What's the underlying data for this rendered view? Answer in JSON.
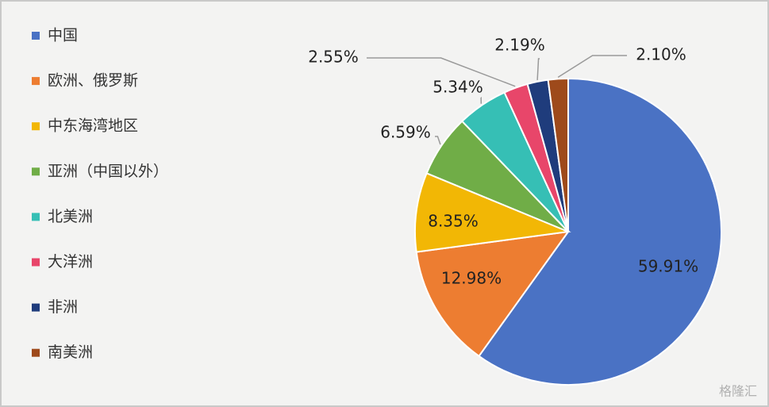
{
  "chart_data": {
    "type": "pie",
    "categories": [
      "中国",
      "欧洲、俄罗斯",
      "中东海湾地区",
      "亚洲（中国以外）",
      "北美洲",
      "大洋洲",
      "非洲",
      "南美洲"
    ],
    "values": [
      59.91,
      12.98,
      8.35,
      6.59,
      5.34,
      2.55,
      2.19,
      2.1
    ],
    "value_labels": [
      "59.91%",
      "12.98%",
      "8.35%",
      "6.59%",
      "5.34%",
      "2.55%",
      "2.19%",
      "2.10%"
    ],
    "colors": [
      "#4a72c4",
      "#ed7d31",
      "#f2b705",
      "#70ad47",
      "#36bfb5",
      "#e8466a",
      "#1f3c7c",
      "#9e4a1b"
    ],
    "watermark": "格隆汇"
  }
}
